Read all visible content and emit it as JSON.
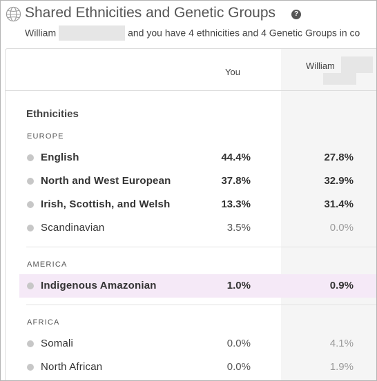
{
  "header": {
    "title": "Shared Ethnicities and Genetic Groups",
    "help_icon": "question-circle-icon",
    "subtitle_name": "William",
    "subtitle_rest": "and you have 4 ethnicities and 4 Genetic Groups in co"
  },
  "table": {
    "col_you": "You",
    "col_match": "William",
    "section_title": "Ethnicities",
    "groups": [
      {
        "region": "EUROPE",
        "rows": [
          {
            "name": "English",
            "you": "44.4%",
            "match": "27.8%"
          },
          {
            "name": "North and West European",
            "you": "37.8%",
            "match": "32.9%"
          },
          {
            "name": "Irish, Scottish, and Welsh",
            "you": "13.3%",
            "match": "31.4%"
          },
          {
            "name": "Scandinavian",
            "you": "3.5%",
            "match": "0.0%"
          }
        ]
      },
      {
        "region": "AMERICA",
        "rows": [
          {
            "name": "Indigenous Amazonian",
            "you": "1.0%",
            "match": "0.9%"
          }
        ]
      },
      {
        "region": "AFRICA",
        "rows": [
          {
            "name": "Somali",
            "you": "0.0%",
            "match": "4.1%"
          },
          {
            "name": "North African",
            "you": "0.0%",
            "match": "1.9%"
          }
        ]
      }
    ]
  },
  "colors": {
    "highlight": "#f5e9f7",
    "shared_column_bg": "#f5f5f5",
    "dot": "#c7c7c7"
  }
}
